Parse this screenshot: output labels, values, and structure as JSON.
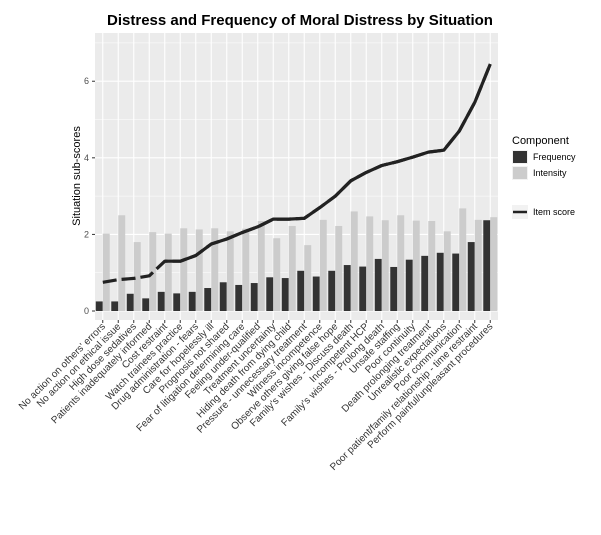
{
  "chart_data": {
    "type": "bar",
    "title": "Distress and Frequency of Moral Distress by Situation",
    "xlabel": "",
    "ylabel": "Situation sub-scores",
    "ylim": [
      0,
      7.2
    ],
    "yticks": [
      0,
      2,
      4,
      6
    ],
    "grid": true,
    "legend_position": "right",
    "categories": [
      "No action on others' errors",
      "No action on ethical issue",
      "High dose sedatives",
      "Patients inadequately informed",
      "Cost restraint",
      "Watch trainees practice",
      "Drug administration - fears",
      "Care for hopelessly ill",
      "Prognosis not shared",
      "Fear of litigation determining care",
      "Feeling under-qualified",
      "Treatment uncertainty",
      "Hiding death from dying child",
      "Pressure - unnecessary treatment",
      "Witness incompetence",
      "Observe others giving false hope",
      "Family's wishes - Discuss death",
      "Incompetent HCP",
      "Family's wishes - Prolong death",
      "Unsafe staffing",
      "Poor continuity",
      "Death prolonging treatment",
      "Unrealistic expectations",
      "Poor communication",
      "Poor patient/family relationship - time restraint",
      "Perform painful/unpleasant procedures"
    ],
    "series": [
      {
        "name": "Frequency",
        "kind": "bar",
        "color": "#333333",
        "values": [
          0.25,
          0.25,
          0.45,
          0.33,
          0.5,
          0.46,
          0.5,
          0.6,
          0.75,
          0.68,
          0.73,
          0.88,
          0.86,
          1.05,
          0.9,
          1.05,
          1.2,
          1.16,
          1.36,
          1.15,
          1.34,
          1.44,
          1.52,
          1.5,
          1.8,
          2.37
        ]
      },
      {
        "name": "Intensity",
        "kind": "bar",
        "color": "#cccccc",
        "values": [
          2.02,
          2.5,
          1.8,
          2.06,
          2.02,
          2.16,
          2.13,
          2.16,
          2.08,
          2.15,
          2.35,
          1.9,
          2.22,
          1.72,
          2.38,
          2.22,
          2.6,
          2.47,
          2.37,
          2.5,
          2.36,
          2.35,
          2.08,
          2.68,
          2.38,
          2.45
        ]
      },
      {
        "name": "Item score",
        "kind": "line",
        "color": "#222222",
        "values": [
          0.75,
          0.82,
          0.85,
          0.92,
          1.3,
          1.3,
          1.45,
          1.75,
          1.88,
          2.05,
          2.2,
          2.4,
          2.4,
          2.42,
          2.7,
          3.0,
          3.4,
          3.62,
          3.8,
          3.9,
          4.02,
          4.15,
          4.2,
          4.7,
          5.45,
          6.45
        ]
      }
    ],
    "legend": {
      "title": "Component",
      "entries": [
        "Frequency",
        "Intensity",
        "Item score"
      ]
    }
  }
}
